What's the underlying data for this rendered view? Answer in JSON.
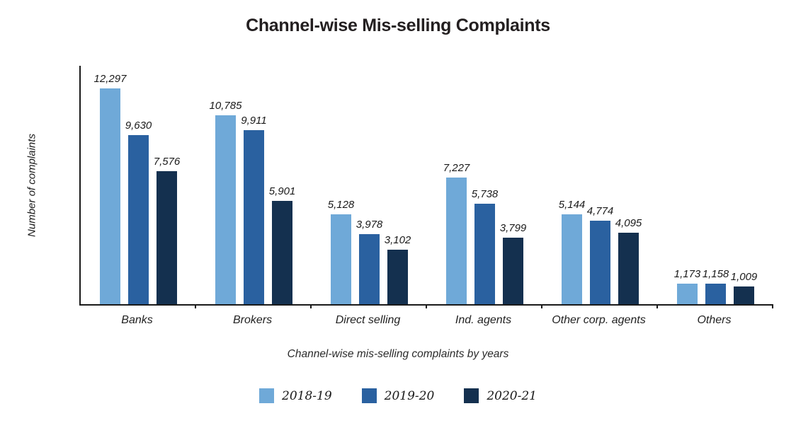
{
  "title": "Channel-wise Mis-selling Complaints",
  "colors": {
    "axis": "#1a1a1a",
    "series1": "#6fa9d8",
    "series2": "#2a61a0",
    "series3": "#14304f"
  },
  "chart_data": {
    "type": "bar",
    "title": "Channel-wise Mis-selling Complaints",
    "xlabel": "Channel-wise mis-selling complaints by years",
    "ylabel": "Number of complaints",
    "categories": [
      "Banks",
      "Brokers",
      "Direct selling",
      "Ind. agents",
      "Other corp. agents",
      "Others"
    ],
    "series": [
      {
        "name": "2018-19",
        "color": "#6fa9d8",
        "values": [
          12297,
          10785,
          5128,
          7227,
          5144,
          1173
        ]
      },
      {
        "name": "2019-20",
        "color": "#2a61a0",
        "values": [
          9630,
          9911,
          3978,
          5738,
          4774,
          1158
        ]
      },
      {
        "name": "2020-21",
        "color": "#14304f",
        "values": [
          7576,
          5901,
          3102,
          3799,
          4095,
          1009
        ]
      }
    ],
    "data_labels": [
      [
        "12,297",
        "10,785",
        "5,128",
        "7,227",
        "5,144",
        "1,173"
      ],
      [
        "9,630",
        "9,911",
        "3,978",
        "5,738",
        "4,774",
        "1,158"
      ],
      [
        "7,576",
        "5,901",
        "3,102",
        "3,799",
        "4,095",
        "1,009"
      ]
    ],
    "ylim": [
      0,
      13600
    ],
    "grid": false,
    "legend_position": "bottom"
  }
}
